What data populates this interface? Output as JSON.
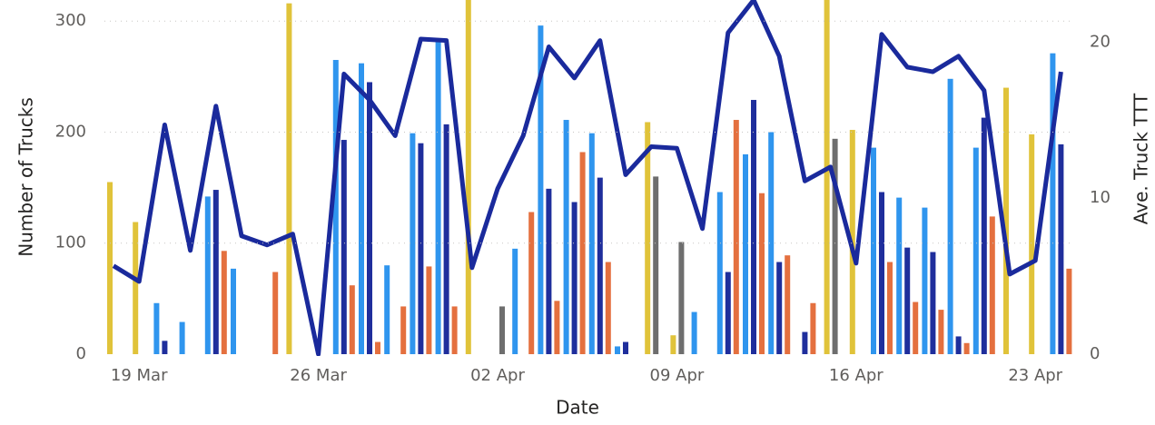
{
  "chart_data": {
    "type": "combo",
    "x_label": "Date",
    "y_label": "Number of Trucks",
    "y2_label": "Ave. Truck TTT",
    "categories": [
      null,
      "19 Mar",
      null,
      null,
      null,
      null,
      null,
      null,
      "26 Mar",
      null,
      null,
      null,
      null,
      null,
      null,
      "02 Apr",
      null,
      null,
      null,
      null,
      null,
      null,
      "09 Apr",
      null,
      null,
      null,
      null,
      null,
      null,
      "16 Apr",
      null,
      null,
      null,
      null,
      null,
      null,
      "23 Apr",
      null
    ],
    "ylim": [
      0,
      319
    ],
    "yticks": [
      0,
      100,
      200,
      300
    ],
    "y2lim": [
      0,
      22.7
    ],
    "y2ticks": [
      0,
      10,
      20
    ],
    "grid": true,
    "series": [
      {
        "type": "bar",
        "color": "#E0C33A",
        "values": [
          155,
          119,
          null,
          null,
          null,
          null,
          null,
          316,
          null,
          null,
          null,
          null,
          null,
          null,
          340,
          null,
          null,
          null,
          null,
          null,
          null,
          209,
          17,
          null,
          null,
          null,
          null,
          null,
          340,
          202,
          null,
          null,
          null,
          null,
          null,
          240,
          198,
          null
        ]
      },
      {
        "type": "bar",
        "color": "#6E6E6E",
        "values": [
          null,
          null,
          null,
          null,
          null,
          null,
          null,
          null,
          null,
          null,
          null,
          null,
          null,
          null,
          null,
          43,
          null,
          null,
          null,
          null,
          null,
          160,
          101,
          null,
          null,
          null,
          null,
          null,
          194,
          null,
          null,
          null,
          null,
          null,
          null,
          null,
          null,
          null
        ]
      },
      {
        "type": "bar",
        "color": "#2F95EE",
        "values": [
          null,
          null,
          46,
          29,
          142,
          77,
          null,
          null,
          null,
          265,
          262,
          80,
          199,
          282,
          null,
          null,
          95,
          296,
          211,
          199,
          7,
          null,
          null,
          38,
          146,
          180,
          200,
          null,
          null,
          null,
          186,
          141,
          132,
          248,
          186,
          null,
          null,
          271
        ]
      },
      {
        "type": "bar",
        "color": "#1F2E9C",
        "values": [
          null,
          null,
          12,
          null,
          148,
          null,
          null,
          null,
          null,
          193,
          245,
          null,
          190,
          207,
          null,
          null,
          null,
          149,
          137,
          159,
          11,
          null,
          null,
          null,
          74,
          229,
          83,
          20,
          null,
          null,
          146,
          96,
          92,
          16,
          213,
          null,
          null,
          189
        ]
      },
      {
        "type": "bar",
        "color": "#E4703F",
        "values": [
          null,
          null,
          null,
          null,
          93,
          null,
          74,
          null,
          null,
          62,
          11,
          43,
          79,
          43,
          null,
          null,
          128,
          48,
          182,
          83,
          null,
          null,
          null,
          null,
          211,
          145,
          89,
          46,
          null,
          null,
          83,
          47,
          40,
          10,
          124,
          null,
          null,
          77
        ]
      },
      {
        "type": "line",
        "axis": "y2",
        "color": "#1A2A9C",
        "values": [
          5.66,
          4.66,
          14.7,
          6.65,
          15.9,
          7.58,
          7.0,
          7.7,
          0,
          17.96,
          16.3,
          14.0,
          20.2,
          20.1,
          5.54,
          10.6,
          14.0,
          19.7,
          17.7,
          20.1,
          11.5,
          13.3,
          13.2,
          8.05,
          20.6,
          22.7,
          19.1,
          11.1,
          12.0,
          5.83,
          20.5,
          18.4,
          18.1,
          19.1,
          16.9,
          5.13,
          6.0,
          18.1
        ]
      }
    ]
  }
}
